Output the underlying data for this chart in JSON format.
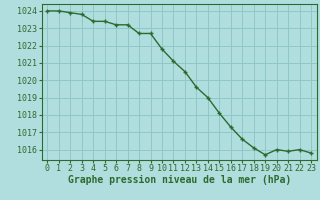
{
  "x": [
    0,
    1,
    2,
    3,
    4,
    5,
    6,
    7,
    8,
    9,
    10,
    11,
    12,
    13,
    14,
    15,
    16,
    17,
    18,
    19,
    20,
    21,
    22,
    23
  ],
  "y": [
    1024.0,
    1024.0,
    1023.9,
    1023.8,
    1023.4,
    1023.4,
    1023.2,
    1023.2,
    1022.7,
    1022.7,
    1021.8,
    1021.1,
    1020.5,
    1019.6,
    1019.0,
    1018.1,
    1017.3,
    1016.6,
    1016.1,
    1015.7,
    1016.0,
    1015.9,
    1016.0,
    1015.8
  ],
  "line_color": "#2d6a2d",
  "marker": "+",
  "bg_color": "#b0dede",
  "grid_color": "#90c8c8",
  "xlabel": "Graphe pression niveau de la mer (hPa)",
  "ylabel": "",
  "ylim": [
    1015.4,
    1024.4
  ],
  "xlim": [
    -0.5,
    23.5
  ],
  "yticks": [
    1016,
    1017,
    1018,
    1019,
    1020,
    1021,
    1022,
    1023,
    1024
  ],
  "xticks": [
    0,
    1,
    2,
    3,
    4,
    5,
    6,
    7,
    8,
    9,
    10,
    11,
    12,
    13,
    14,
    15,
    16,
    17,
    18,
    19,
    20,
    21,
    22,
    23
  ],
  "xlabel_fontsize": 7,
  "tick_fontsize": 6,
  "line_width": 1.0,
  "marker_size": 3.5
}
